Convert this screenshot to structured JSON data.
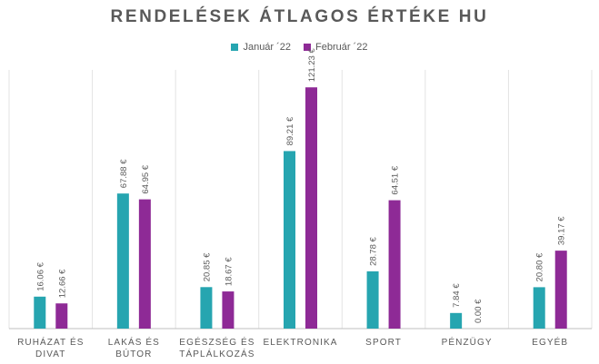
{
  "colors": {
    "jan": "#26A5B0",
    "feb": "#8E2A96",
    "grid": "#E3E3E3",
    "axis": "#BFBFBF",
    "text": "#595959"
  },
  "chart_data": {
    "type": "bar",
    "title": "RENDELÉSEK ÁTLAGOS ÉRTÉKE HU",
    "xlabel": "",
    "ylabel": "",
    "ylim": [
      0,
      130
    ],
    "grid": "vertical-category-separators",
    "legend_position": "top",
    "categories": [
      [
        "RUHÁZAT ÉS",
        "DIVAT"
      ],
      [
        "LAKÁS ÉS",
        "BÚTOR"
      ],
      [
        "EGÉSZSÉG ÉS",
        "TÁPLÁLKOZÁS"
      ],
      [
        "ELEKTRONIKA"
      ],
      [
        "SPORT"
      ],
      [
        "PÉNZÜGY"
      ],
      [
        "EGYÉB"
      ]
    ],
    "series": [
      {
        "name": "Január ´22",
        "values": [
          16.06,
          67.88,
          20.85,
          89.21,
          28.78,
          7.84,
          20.8
        ],
        "labels": [
          "16.06 €",
          "67.88 €",
          "20.85 €",
          "89.21 €",
          "28.78 €",
          "7.84 €",
          "20.80 €"
        ]
      },
      {
        "name": "Február  ´22",
        "values": [
          12.66,
          64.95,
          18.67,
          121.23,
          64.51,
          0.0,
          39.17
        ],
        "labels": [
          "12.66 €",
          "64.95 €",
          "18.67 €",
          "121.23 €",
          "64.51 €",
          "0.00 €",
          "39.17 €"
        ]
      }
    ]
  }
}
